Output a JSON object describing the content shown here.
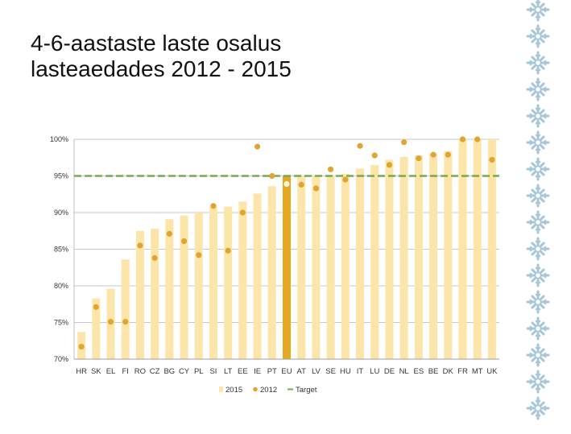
{
  "slide": {
    "title_line1": "4-6-aastaste laste osalus",
    "title_line2": "lasteaedades 2012 - 2015"
  },
  "colors": {
    "bar_2015": "#fbe5a9",
    "bar_eu": "#e4a91f",
    "dot_2012": "#e0a430",
    "target": "#7aaa4e",
    "grid": "#c7c7c7",
    "decoration": "#a6c6d9"
  },
  "decoration": {
    "icon": "snowflake-icon"
  },
  "chart_data": {
    "type": "bar",
    "categories": [
      "HR",
      "SK",
      "EL",
      "FI",
      "RO",
      "CZ",
      "BG",
      "CY",
      "PL",
      "SI",
      "LT",
      "EE",
      "IE",
      "PT",
      "EU",
      "AT",
      "LV",
      "SE",
      "HU",
      "IT",
      "LU",
      "DE",
      "NL",
      "ES",
      "BE",
      "DK",
      "FR",
      "MT",
      "UK"
    ],
    "series": [
      {
        "name": "2015",
        "kind": "bar",
        "values": [
          73.7,
          78.3,
          79.6,
          83.6,
          87.5,
          87.8,
          89.1,
          89.6,
          90.0,
          90.8,
          90.8,
          91.5,
          92.6,
          93.6,
          95.0,
          95.0,
          95.0,
          95.1,
          95.3,
          96.0,
          96.5,
          97.2,
          97.6,
          97.8,
          98.0,
          98.4,
          100.0,
          100.0,
          100.0
        ]
      },
      {
        "name": "2012",
        "kind": "scatter",
        "values": [
          71.7,
          77.1,
          75.1,
          75.1,
          85.5,
          83.8,
          87.1,
          86.1,
          84.2,
          90.9,
          84.8,
          90.0,
          99.0,
          95.0,
          93.9,
          93.8,
          93.3,
          95.9,
          94.5,
          99.1,
          97.8,
          96.5,
          99.6,
          97.4,
          97.9,
          97.9,
          100.0,
          100.0,
          97.2
        ]
      }
    ],
    "target": {
      "name": "Target",
      "value": 95
    },
    "highlight_category": "EU",
    "ylim": [
      70,
      100
    ],
    "yticks": [
      70,
      75,
      80,
      85,
      90,
      95,
      100
    ],
    "ytick_labels": [
      "70%",
      "75%",
      "80%",
      "85%",
      "90%",
      "95%",
      "100%"
    ],
    "grid": true,
    "legend_position": "bottom",
    "legend": [
      {
        "label": "2015",
        "kind": "bar"
      },
      {
        "label": "2012",
        "kind": "dot"
      },
      {
        "label": "Target",
        "kind": "dash"
      }
    ]
  }
}
